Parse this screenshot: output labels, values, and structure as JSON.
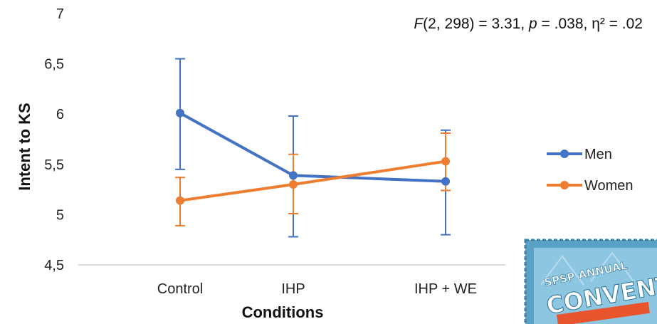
{
  "chart_data": {
    "type": "line",
    "annotation": {
      "F_symbol": "F",
      "F_args": "(2, 298) = 3.31, ",
      "p_symbol": "p",
      "p_rest": " = .038, η² = .02"
    },
    "xlabel": "Conditions",
    "ylabel": "Intent to KS",
    "categories": [
      "Control",
      "IHP",
      "IHP + WE"
    ],
    "yticks": [
      "4,5",
      "5",
      "5,5",
      "6",
      "6,5",
      "7"
    ],
    "ylim": [
      4.5,
      7
    ],
    "grid": false,
    "legend_position": "right",
    "series": [
      {
        "name": "Men",
        "color": "#4472C4",
        "values": [
          6.01,
          5.39,
          5.33
        ],
        "err_upper": [
          6.55,
          5.98,
          5.84
        ],
        "err_lower": [
          5.45,
          4.78,
          4.8
        ]
      },
      {
        "name": "Women",
        "color": "#ED7D31",
        "values": [
          5.14,
          5.3,
          5.53
        ],
        "err_upper": [
          5.37,
          5.6,
          5.81
        ],
        "err_lower": [
          4.89,
          5.01,
          5.24
        ]
      }
    ]
  },
  "stamp": {
    "line1": "SPSP ANNUAL",
    "line2": "CONVENT",
    "colors": {
      "frame": "#5aa3c7",
      "inner": "#8cc6e0",
      "text": "#ffffff",
      "banner": "#e8542b"
    }
  }
}
